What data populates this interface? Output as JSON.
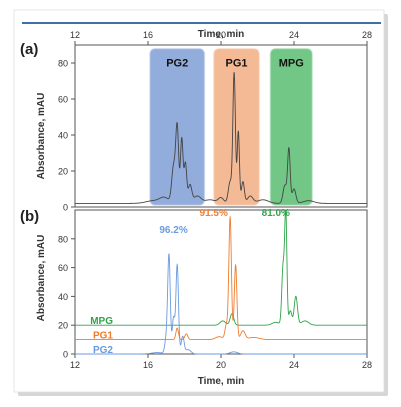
{
  "colors": {
    "top_rule": "#3f6fa8",
    "axis": "#555555",
    "trace_a": "#444444",
    "pg2": "#6a9be0",
    "pg1": "#ef7c2e",
    "mpg": "#2ea34a",
    "pg2_band": "#7f9dd6",
    "pg1_band": "#f2ad83",
    "mpg_band": "#59bd72"
  },
  "chart_data": [
    {
      "panel": "(a)",
      "type": "line",
      "xlabel": "Time, min",
      "ylabel": "Absorbance, mAU",
      "xlim": [
        12,
        28
      ],
      "ylim": [
        0,
        90
      ],
      "xticks": [
        12,
        16,
        20,
        24,
        28
      ],
      "yticks": [
        0,
        20,
        40,
        60,
        80
      ],
      "x_axis_position": "top",
      "fractions": [
        {
          "label": "PG2",
          "x_range": [
            16.1,
            19.1
          ],
          "color": "pg2_band"
        },
        {
          "label": "PG1",
          "x_range": [
            19.6,
            22.1
          ],
          "color": "pg1_band"
        },
        {
          "label": "MPG",
          "x_range": [
            22.7,
            25.0
          ],
          "color": "mpg_band"
        }
      ],
      "series": [
        {
          "color": "trace_a",
          "baseline": 2,
          "peaks": [
            [
              16.3,
              1.5,
              0.4
            ],
            [
              16.9,
              3,
              0.25
            ],
            [
              17.4,
              20,
              0.1
            ],
            [
              17.6,
              42,
              0.08
            ],
            [
              17.85,
              36,
              0.07
            ],
            [
              18.05,
              22,
              0.07
            ],
            [
              18.3,
              10,
              0.1
            ],
            [
              18.7,
              4,
              0.2
            ],
            [
              19.4,
              2,
              0.3
            ],
            [
              20.0,
              3,
              0.15
            ],
            [
              20.5,
              12,
              0.1
            ],
            [
              20.72,
              72,
              0.07
            ],
            [
              20.95,
              40,
              0.06
            ],
            [
              21.2,
              12,
              0.08
            ],
            [
              21.6,
              4,
              0.15
            ],
            [
              22.3,
              2,
              0.3
            ],
            [
              23.5,
              10,
              0.1
            ],
            [
              23.72,
              30,
              0.07
            ],
            [
              24.0,
              8,
              0.1
            ],
            [
              24.8,
              1.5,
              0.3
            ]
          ]
        }
      ]
    },
    {
      "panel": "(b)",
      "type": "line",
      "xlabel": "Time, min",
      "ylabel": "Absorbance, mAU",
      "xlim": [
        12,
        28
      ],
      "ylim": [
        0,
        100
      ],
      "xticks": [
        12,
        16,
        20,
        24,
        28
      ],
      "yticks": [
        0,
        20,
        40,
        60,
        80
      ],
      "series": [
        {
          "name": "PG2",
          "color": "pg2",
          "baseline": 0,
          "purity": "96.2%",
          "peaks": [
            [
              16.5,
              1,
              0.3
            ],
            [
              17.0,
              10,
              0.08
            ],
            [
              17.15,
              68,
              0.07
            ],
            [
              17.4,
              25,
              0.07
            ],
            [
              17.6,
              62,
              0.07
            ],
            [
              17.9,
              12,
              0.08
            ],
            [
              18.2,
              3,
              0.15
            ],
            [
              20.7,
              1.5,
              0.2
            ]
          ]
        },
        {
          "name": "PG1",
          "color": "pg1",
          "baseline": 10,
          "purity": "91.5%",
          "peaks": [
            [
              17.6,
              8,
              0.07
            ],
            [
              18.1,
              4,
              0.08
            ],
            [
              19.9,
              2,
              0.2
            ],
            [
              20.3,
              10,
              0.08
            ],
            [
              20.5,
              85,
              0.07
            ],
            [
              20.8,
              52,
              0.07
            ],
            [
              21.2,
              6,
              0.12
            ],
            [
              21.8,
              1.5,
              0.3
            ]
          ]
        },
        {
          "name": "MPG",
          "color": "mpg",
          "baseline": 20,
          "purity": "81.0%",
          "peaks": [
            [
              20.1,
              3,
              0.15
            ],
            [
              20.6,
              8,
              0.1
            ],
            [
              23.0,
              2,
              0.2
            ],
            [
              23.4,
              40,
              0.07
            ],
            [
              23.55,
              78,
              0.06
            ],
            [
              23.8,
              10,
              0.08
            ],
            [
              24.1,
              20,
              0.09
            ],
            [
              24.6,
              3,
              0.2
            ]
          ]
        }
      ]
    }
  ]
}
